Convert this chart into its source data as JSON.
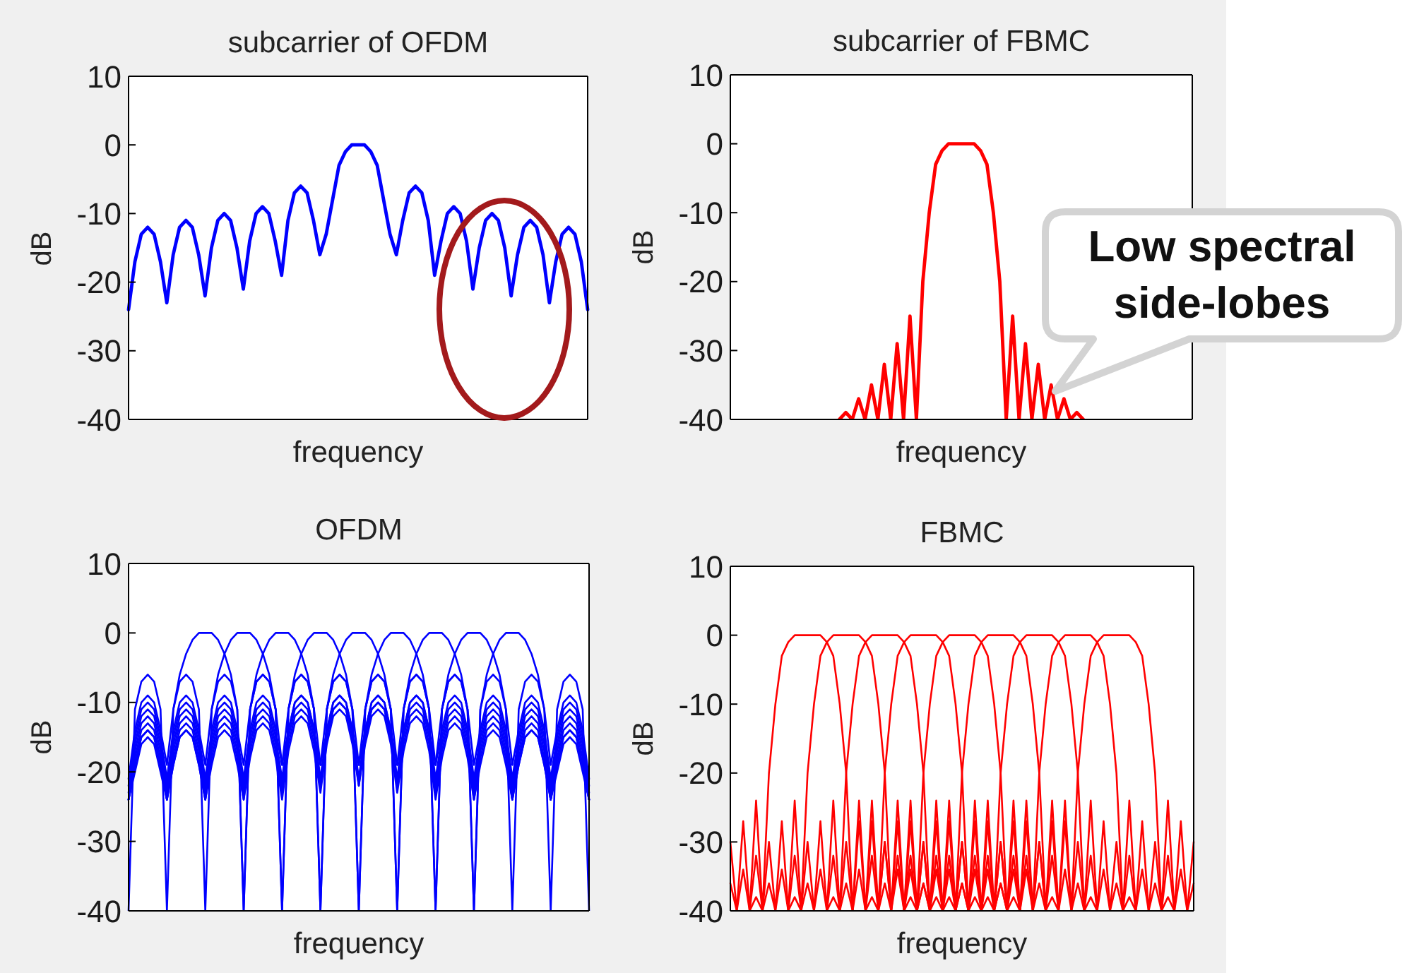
{
  "chart_data": [
    {
      "type": "line",
      "title": "subcarrier of OFDM",
      "xlabel": "frequency",
      "ylabel": "dB",
      "ylim": [
        -40,
        10
      ],
      "yticks": [
        -40,
        -30,
        -20,
        -10,
        0,
        10
      ],
      "categories": [
        null,
        null,
        null,
        null,
        null,
        null,
        null,
        null,
        null,
        null,
        null,
        null,
        null,
        null,
        null,
        null,
        null,
        null,
        null,
        null,
        null,
        null,
        null,
        null,
        null,
        null,
        null,
        null,
        null,
        null,
        null,
        null,
        null,
        null,
        null,
        null,
        null,
        null,
        null,
        null,
        null,
        null,
        null,
        null,
        null,
        null,
        null,
        null,
        null,
        null,
        null,
        null,
        null,
        null,
        null,
        null,
        null,
        null,
        null,
        null,
        null,
        null,
        null,
        null,
        null,
        null,
        null,
        null,
        null,
        null,
        null,
        null,
        null
      ],
      "series": [
        {
          "color": "#0000ff",
          "values": [
            -24,
            -17,
            -13,
            -12,
            -13,
            -17,
            -23,
            -16,
            -12,
            -11,
            -12,
            -16,
            -22,
            -15,
            -11,
            -10,
            -11,
            -15,
            -21,
            -14,
            -10,
            -9,
            -10,
            -14,
            -19,
            -11,
            -7,
            -6,
            -7,
            -11,
            -16,
            -13,
            -8,
            -3,
            -1,
            0,
            0,
            0,
            -1,
            -3,
            -8,
            -13,
            -16,
            -11,
            -7,
            -6,
            -7,
            -11,
            -19,
            -14,
            -10,
            -9,
            -10,
            -14,
            -21,
            -15,
            -11,
            -10,
            -11,
            -15,
            -22,
            -16,
            -12,
            -11,
            -12,
            -16,
            -23,
            -17,
            -13,
            -12,
            -13,
            -17,
            -24
          ]
        }
      ]
    },
    {
      "type": "line",
      "title": "subcarrier of FBMC",
      "xlabel": "frequency",
      "ylabel": "dB",
      "ylim": [
        -40,
        10
      ],
      "yticks": [
        -40,
        -30,
        -20,
        -10,
        0,
        10
      ],
      "annotations": [
        "Low spectral side-lobes"
      ],
      "categories": [
        null,
        null,
        null,
        null,
        null,
        null,
        null,
        null,
        null,
        null,
        null,
        null,
        null,
        null,
        null,
        null,
        null,
        null,
        null,
        null,
        null,
        null,
        null,
        null,
        null,
        null,
        null,
        null,
        null,
        null,
        null,
        null,
        null,
        null,
        null,
        null,
        null,
        null,
        null,
        null,
        null,
        null,
        null,
        null,
        null,
        null,
        null,
        null,
        null,
        null,
        null,
        null,
        null,
        null,
        null,
        null,
        null,
        null,
        null,
        null,
        null,
        null,
        null,
        null,
        null,
        null,
        null,
        null,
        null,
        null,
        null,
        null,
        null
      ],
      "series": [
        {
          "color": "#ff0000",
          "values": [
            null,
            null,
            null,
            null,
            null,
            null,
            null,
            null,
            null,
            null,
            null,
            null,
            null,
            null,
            null,
            null,
            null,
            -40,
            -39,
            -40,
            -37,
            -40,
            -35,
            -40,
            -32,
            -40,
            -29,
            -40,
            -25,
            -40,
            -20,
            -10,
            -3,
            -1,
            0,
            0,
            0,
            0,
            0,
            -1,
            -3,
            -10,
            -20,
            -40,
            -25,
            -40,
            -29,
            -40,
            -32,
            -40,
            -35,
            -40,
            -37,
            -40,
            -39,
            -40,
            null,
            null,
            null,
            null,
            null,
            null,
            null,
            null,
            null,
            null,
            null,
            null,
            null,
            null,
            null,
            null,
            null
          ]
        }
      ]
    },
    {
      "type": "line",
      "title": "OFDM",
      "xlabel": "frequency",
      "ylabel": "dB",
      "ylim": [
        -40,
        10
      ],
      "yticks": [
        -40,
        -30,
        -20,
        -10,
        0,
        10
      ],
      "categories": [
        null,
        null,
        null,
        null,
        null,
        null,
        null,
        null,
        null,
        null,
        null,
        null,
        null,
        null,
        null,
        null,
        null,
        null,
        null,
        null,
        null,
        null,
        null,
        null,
        null,
        null,
        null,
        null,
        null,
        null,
        null,
        null,
        null,
        null,
        null,
        null,
        null,
        null,
        null,
        null,
        null,
        null,
        null,
        null,
        null,
        null,
        null,
        null,
        null,
        null,
        null,
        null,
        null,
        null,
        null,
        null,
        null,
        null,
        null,
        null,
        null,
        null,
        null,
        null,
        null,
        null,
        null,
        null,
        null,
        null,
        null,
        null,
        null
      ],
      "series": [
        {
          "color": "#0000ff",
          "values": [
            -40,
            -11,
            -7,
            -6,
            -7,
            -11,
            -40,
            -11,
            -6,
            -3,
            -1,
            0,
            0,
            0,
            -1,
            -3,
            -6,
            -11,
            -40,
            -11,
            -7,
            -6,
            -7,
            -11,
            -19,
            -14,
            -10,
            -9,
            -10,
            -14,
            -21,
            -15,
            -11,
            -10,
            -11,
            -15,
            -22,
            -16,
            -12,
            -11,
            -12,
            -16,
            -23,
            -17,
            -13,
            -12,
            -13,
            -17,
            -24,
            -18,
            -14,
            -13,
            -14,
            -18,
            -24,
            -19,
            -15,
            -14,
            -15,
            -19,
            -24,
            -19,
            -15,
            -14,
            -15,
            -19,
            -24,
            -20,
            -16,
            -15,
            -16,
            -20,
            -24
          ]
        },
        {
          "color": "#0000ff",
          "values": [
            -21,
            -14,
            -10,
            -9,
            -10,
            -14,
            -19,
            -11,
            -7,
            -6,
            -7,
            -11,
            -40,
            -11,
            -6,
            -3,
            -1,
            0,
            0,
            0,
            -1,
            -3,
            -6,
            -11,
            -40,
            -11,
            -7,
            -6,
            -7,
            -11,
            -19,
            -14,
            -10,
            -9,
            -10,
            -14,
            -21,
            -15,
            -11,
            -10,
            -11,
            -15,
            -22,
            -16,
            -12,
            -11,
            -12,
            -16,
            -23,
            -17,
            -13,
            -12,
            -13,
            -17,
            -24,
            -18,
            -14,
            -13,
            -14,
            -18,
            -24,
            -19,
            -15,
            -14,
            -15,
            -19,
            -24,
            -19,
            -15,
            -14,
            -15,
            -19,
            -24
          ]
        },
        {
          "color": "#0000ff",
          "values": [
            -22,
            -15,
            -11,
            -10,
            -11,
            -15,
            -21,
            -14,
            -10,
            -9,
            -10,
            -14,
            -19,
            -11,
            -7,
            -6,
            -7,
            -11,
            -40,
            -11,
            -6,
            -3,
            -1,
            0,
            0,
            0,
            -1,
            -3,
            -6,
            -11,
            -40,
            -11,
            -7,
            -6,
            -7,
            -11,
            -19,
            -14,
            -10,
            -9,
            -10,
            -14,
            -21,
            -15,
            -11,
            -10,
            -11,
            -15,
            -22,
            -16,
            -12,
            -11,
            -12,
            -16,
            -23,
            -17,
            -13,
            -12,
            -13,
            -17,
            -24,
            -18,
            -14,
            -13,
            -14,
            -18,
            -24,
            -19,
            -15,
            -14,
            -15,
            -19,
            -24
          ]
        },
        {
          "color": "#0000ff",
          "values": [
            -23,
            -16,
            -12,
            -11,
            -12,
            -16,
            -22,
            -15,
            -11,
            -10,
            -11,
            -15,
            -21,
            -14,
            -10,
            -9,
            -10,
            -14,
            -19,
            -11,
            -7,
            -6,
            -7,
            -11,
            -40,
            -11,
            -6,
            -3,
            -1,
            0,
            0,
            0,
            -1,
            -3,
            -6,
            -11,
            -40,
            -11,
            -7,
            -6,
            -7,
            -11,
            -19,
            -14,
            -10,
            -9,
            -10,
            -14,
            -21,
            -15,
            -11,
            -10,
            -11,
            -15,
            -22,
            -16,
            -12,
            -11,
            -12,
            -16,
            -23,
            -17,
            -13,
            -12,
            -13,
            -17,
            -24,
            -18,
            -14,
            -13,
            -14,
            -18,
            -24
          ]
        },
        {
          "color": "#0000ff",
          "values": [
            -24,
            -17,
            -13,
            -12,
            -13,
            -17,
            -23,
            -16,
            -12,
            -11,
            -12,
            -16,
            -22,
            -15,
            -11,
            -10,
            -11,
            -15,
            -21,
            -14,
            -10,
            -9,
            -10,
            -14,
            -19,
            -11,
            -7,
            -6,
            -7,
            -11,
            -40,
            -11,
            -6,
            -3,
            -1,
            0,
            0,
            0,
            -1,
            -3,
            -6,
            -11,
            -40,
            -11,
            -7,
            -6,
            -7,
            -11,
            -19,
            -14,
            -10,
            -9,
            -10,
            -14,
            -21,
            -15,
            -11,
            -10,
            -11,
            -15,
            -22,
            -16,
            -12,
            -11,
            -12,
            -16,
            -23,
            -17,
            -13,
            -12,
            -13,
            -17,
            -24
          ]
        },
        {
          "color": "#0000ff",
          "values": [
            -24,
            -18,
            -14,
            -13,
            -14,
            -18,
            -24,
            -17,
            -13,
            -12,
            -13,
            -17,
            -23,
            -16,
            -12,
            -11,
            -12,
            -16,
            -22,
            -15,
            -11,
            -10,
            -11,
            -15,
            -21,
            -14,
            -10,
            -9,
            -10,
            -14,
            -19,
            -11,
            -7,
            -6,
            -7,
            -11,
            -40,
            -11,
            -6,
            -3,
            -1,
            0,
            0,
            0,
            -1,
            -3,
            -6,
            -11,
            -40,
            -11,
            -7,
            -6,
            -7,
            -11,
            -19,
            -14,
            -10,
            -9,
            -10,
            -14,
            -21,
            -15,
            -11,
            -10,
            -11,
            -15,
            -22,
            -16,
            -12,
            -11,
            -12,
            -16,
            -23
          ]
        },
        {
          "color": "#0000ff",
          "values": [
            -24,
            -19,
            -15,
            -14,
            -15,
            -19,
            -24,
            -18,
            -14,
            -13,
            -14,
            -18,
            -24,
            -17,
            -13,
            -12,
            -13,
            -17,
            -23,
            -16,
            -12,
            -11,
            -12,
            -16,
            -22,
            -15,
            -11,
            -10,
            -11,
            -15,
            -21,
            -14,
            -10,
            -9,
            -10,
            -14,
            -19,
            -11,
            -7,
            -6,
            -7,
            -11,
            -40,
            -11,
            -6,
            -3,
            -1,
            0,
            0,
            0,
            -1,
            -3,
            -6,
            -11,
            -40,
            -11,
            -7,
            -6,
            -7,
            -11,
            -19,
            -14,
            -10,
            -9,
            -10,
            -14,
            -21,
            -15,
            -11,
            -10,
            -11,
            -15,
            -22
          ]
        },
        {
          "color": "#0000ff",
          "values": [
            -24,
            -19,
            -15,
            -14,
            -15,
            -19,
            -24,
            -19,
            -15,
            -14,
            -15,
            -19,
            -24,
            -18,
            -14,
            -13,
            -14,
            -18,
            -24,
            -17,
            -13,
            -12,
            -13,
            -17,
            -23,
            -16,
            -12,
            -11,
            -12,
            -16,
            -22,
            -15,
            -11,
            -10,
            -11,
            -15,
            -21,
            -14,
            -10,
            -9,
            -10,
            -14,
            -19,
            -11,
            -7,
            -6,
            -7,
            -11,
            -40,
            -11,
            -6,
            -3,
            -1,
            0,
            0,
            0,
            -1,
            -3,
            -6,
            -11,
            -40,
            -11,
            -7,
            -6,
            -7,
            -11,
            -19,
            -14,
            -10,
            -9,
            -10,
            -14,
            -21
          ]
        },
        {
          "color": "#0000ff",
          "values": [
            -24,
            -20,
            -16,
            -15,
            -16,
            -20,
            -24,
            -19,
            -15,
            -14,
            -15,
            -19,
            -24,
            -19,
            -15,
            -14,
            -15,
            -19,
            -24,
            -18,
            -14,
            -13,
            -14,
            -18,
            -24,
            -17,
            -13,
            -12,
            -13,
            -17,
            -23,
            -16,
            -12,
            -11,
            -12,
            -16,
            -22,
            -15,
            -11,
            -10,
            -11,
            -15,
            -21,
            -14,
            -10,
            -9,
            -10,
            -14,
            -19,
            -11,
            -7,
            -6,
            -7,
            -11,
            -40,
            -11,
            -6,
            -3,
            -1,
            0,
            0,
            0,
            -1,
            -3,
            -6,
            -11,
            -40,
            -11,
            -7,
            -6,
            -7,
            -11,
            -40
          ]
        }
      ]
    },
    {
      "type": "line",
      "title": "FBMC",
      "xlabel": "frequency",
      "ylabel": "dB",
      "ylim": [
        -40,
        10
      ],
      "yticks": [
        -40,
        -30,
        -20,
        -10,
        0,
        10
      ],
      "categories": [
        null,
        null,
        null,
        null,
        null,
        null,
        null,
        null,
        null,
        null,
        null,
        null,
        null,
        null,
        null,
        null,
        null,
        null,
        null,
        null,
        null,
        null,
        null,
        null,
        null,
        null,
        null,
        null,
        null,
        null,
        null,
        null,
        null,
        null,
        null,
        null,
        null,
        null,
        null,
        null,
        null,
        null,
        null,
        null,
        null,
        null,
        null,
        null,
        null,
        null,
        null,
        null,
        null,
        null,
        null,
        null,
        null,
        null,
        null,
        null,
        null,
        null,
        null,
        null,
        null,
        null,
        null,
        null,
        null,
        null,
        null,
        null,
        null
      ],
      "series": [
        {
          "color": "#ff0000",
          "values": [
            -30,
            -40,
            -27,
            -40,
            -24,
            -40,
            -20,
            -10,
            -3,
            -1,
            0,
            0,
            0,
            0,
            0,
            -1,
            -3,
            -10,
            -20,
            -40,
            -24,
            -40,
            -27,
            -40,
            -30,
            -40,
            -32,
            -40,
            -34,
            -40,
            -36,
            -40,
            -38,
            -40,
            null,
            null,
            null,
            null,
            null,
            null,
            null,
            null,
            null,
            null,
            null,
            null,
            null,
            null,
            null,
            null,
            null,
            null,
            null,
            null,
            null,
            null,
            null,
            null,
            null,
            null,
            null,
            null,
            null,
            null,
            null,
            null,
            null,
            null,
            null,
            null,
            null,
            null,
            null
          ]
        },
        {
          "color": "#ff0000",
          "values": [
            -36,
            -40,
            -34,
            -40,
            -32,
            -40,
            -30,
            -40,
            -27,
            -40,
            -24,
            -40,
            -20,
            -10,
            -3,
            -1,
            0,
            0,
            0,
            0,
            0,
            -1,
            -3,
            -10,
            -20,
            -40,
            -24,
            -40,
            -27,
            -40,
            -30,
            -40,
            -32,
            -40,
            -34,
            -40,
            -36,
            -40,
            -38,
            -40,
            null,
            null,
            null,
            null,
            null,
            null,
            null,
            null,
            null,
            null,
            null,
            null,
            null,
            null,
            null,
            null,
            null,
            null,
            null,
            null,
            null,
            null,
            null,
            null,
            null,
            null,
            null,
            null,
            null,
            null,
            null,
            null,
            null
          ]
        },
        {
          "color": "#ff0000",
          "values": [
            null,
            null,
            null,
            -40,
            -38,
            -40,
            -36,
            -40,
            -34,
            -40,
            -32,
            -40,
            -30,
            -40,
            -27,
            -40,
            -24,
            -40,
            -20,
            -10,
            -3,
            -1,
            0,
            0,
            0,
            0,
            0,
            -1,
            -3,
            -10,
            -20,
            -40,
            -24,
            -40,
            -27,
            -40,
            -30,
            -40,
            -32,
            -40,
            -34,
            -40,
            -36,
            -40,
            -38,
            -40,
            null,
            null,
            null,
            null,
            null,
            null,
            null,
            null,
            null,
            null,
            null,
            null,
            null,
            null,
            null,
            null,
            null,
            null,
            null,
            null,
            null,
            null,
            null,
            null,
            null,
            null,
            null
          ]
        },
        {
          "color": "#ff0000",
          "values": [
            null,
            null,
            null,
            null,
            null,
            null,
            null,
            null,
            null,
            -40,
            -38,
            -40,
            -36,
            -40,
            -34,
            -40,
            -32,
            -40,
            -30,
            -40,
            -27,
            -40,
            -24,
            -40,
            -20,
            -10,
            -3,
            -1,
            0,
            0,
            0,
            0,
            0,
            -1,
            -3,
            -10,
            -20,
            -40,
            -24,
            -40,
            -27,
            -40,
            -30,
            -40,
            -32,
            -40,
            -34,
            -40,
            -36,
            -40,
            -38,
            -40,
            null,
            null,
            null,
            null,
            null,
            null,
            null,
            null,
            null,
            null,
            null,
            null,
            null,
            null,
            null,
            null,
            null,
            null,
            null,
            null,
            null
          ]
        },
        {
          "color": "#ff0000",
          "values": [
            null,
            null,
            null,
            null,
            null,
            null,
            null,
            null,
            null,
            null,
            null,
            null,
            null,
            null,
            null,
            -40,
            -38,
            -40,
            -36,
            -40,
            -34,
            -40,
            -32,
            -40,
            -30,
            -40,
            -27,
            -40,
            -24,
            -40,
            -20,
            -10,
            -3,
            -1,
            0,
            0,
            0,
            0,
            0,
            -1,
            -3,
            -10,
            -20,
            -40,
            -24,
            -40,
            -27,
            -40,
            -30,
            -40,
            -32,
            -40,
            -34,
            -40,
            -36,
            -40,
            -38,
            -40,
            null,
            null,
            null,
            null,
            null,
            null,
            null,
            null,
            null,
            null,
            null,
            null,
            null,
            null,
            null
          ]
        },
        {
          "color": "#ff0000",
          "values": [
            null,
            null,
            null,
            null,
            null,
            null,
            null,
            null,
            null,
            null,
            null,
            null,
            null,
            null,
            null,
            null,
            null,
            null,
            null,
            null,
            null,
            -40,
            -38,
            -40,
            -36,
            -40,
            -34,
            -40,
            -32,
            -40,
            -30,
            -40,
            -27,
            -40,
            -24,
            -40,
            -20,
            -10,
            -3,
            -1,
            0,
            0,
            0,
            0,
            0,
            -1,
            -3,
            -10,
            -20,
            -40,
            -24,
            -40,
            -27,
            -40,
            -30,
            -40,
            -32,
            -40,
            -34,
            -40,
            -36,
            -40,
            -38,
            -40,
            null,
            null,
            null,
            null,
            null,
            null,
            null,
            null,
            null
          ]
        },
        {
          "color": "#ff0000",
          "values": [
            null,
            null,
            null,
            null,
            null,
            null,
            null,
            null,
            null,
            null,
            null,
            null,
            null,
            null,
            null,
            null,
            null,
            null,
            null,
            null,
            null,
            null,
            null,
            null,
            null,
            null,
            null,
            -40,
            -38,
            -40,
            -36,
            -40,
            -34,
            -40,
            -32,
            -40,
            -30,
            -40,
            -27,
            -40,
            -24,
            -40,
            -20,
            -10,
            -3,
            -1,
            0,
            0,
            0,
            0,
            0,
            -1,
            -3,
            -10,
            -20,
            -40,
            -24,
            -40,
            -27,
            -40,
            -30,
            -40,
            -32,
            -40,
            -34,
            -40,
            -36,
            -40,
            -38,
            -40,
            null,
            null,
            null
          ]
        },
        {
          "color": "#ff0000",
          "values": [
            null,
            null,
            null,
            null,
            null,
            null,
            null,
            null,
            null,
            null,
            null,
            null,
            null,
            null,
            null,
            null,
            null,
            null,
            null,
            null,
            null,
            null,
            null,
            null,
            null,
            null,
            null,
            null,
            null,
            null,
            null,
            null,
            null,
            -40,
            -38,
            -40,
            -36,
            -40,
            -34,
            -40,
            -32,
            -40,
            -30,
            -40,
            -27,
            -40,
            -24,
            -40,
            -20,
            -10,
            -3,
            -1,
            0,
            0,
            0,
            0,
            0,
            -1,
            -3,
            -10,
            -20,
            -40,
            -24,
            -40,
            -27,
            -40,
            -30,
            -40,
            -32,
            -40,
            -34,
            -40,
            -36
          ]
        },
        {
          "color": "#ff0000",
          "values": [
            null,
            null,
            null,
            null,
            null,
            null,
            null,
            null,
            null,
            null,
            null,
            null,
            null,
            null,
            null,
            null,
            null,
            null,
            null,
            null,
            null,
            null,
            null,
            null,
            null,
            null,
            null,
            null,
            null,
            null,
            null,
            null,
            null,
            null,
            null,
            null,
            null,
            null,
            null,
            -40,
            -38,
            -40,
            -36,
            -40,
            -34,
            -40,
            -32,
            -40,
            -30,
            -40,
            -27,
            -40,
            -24,
            -40,
            -20,
            -10,
            -3,
            -1,
            0,
            0,
            0,
            0,
            0,
            -1,
            -3,
            -10,
            -20,
            -40,
            -24,
            -40,
            -27,
            -40,
            -30
          ]
        }
      ]
    }
  ]
}
